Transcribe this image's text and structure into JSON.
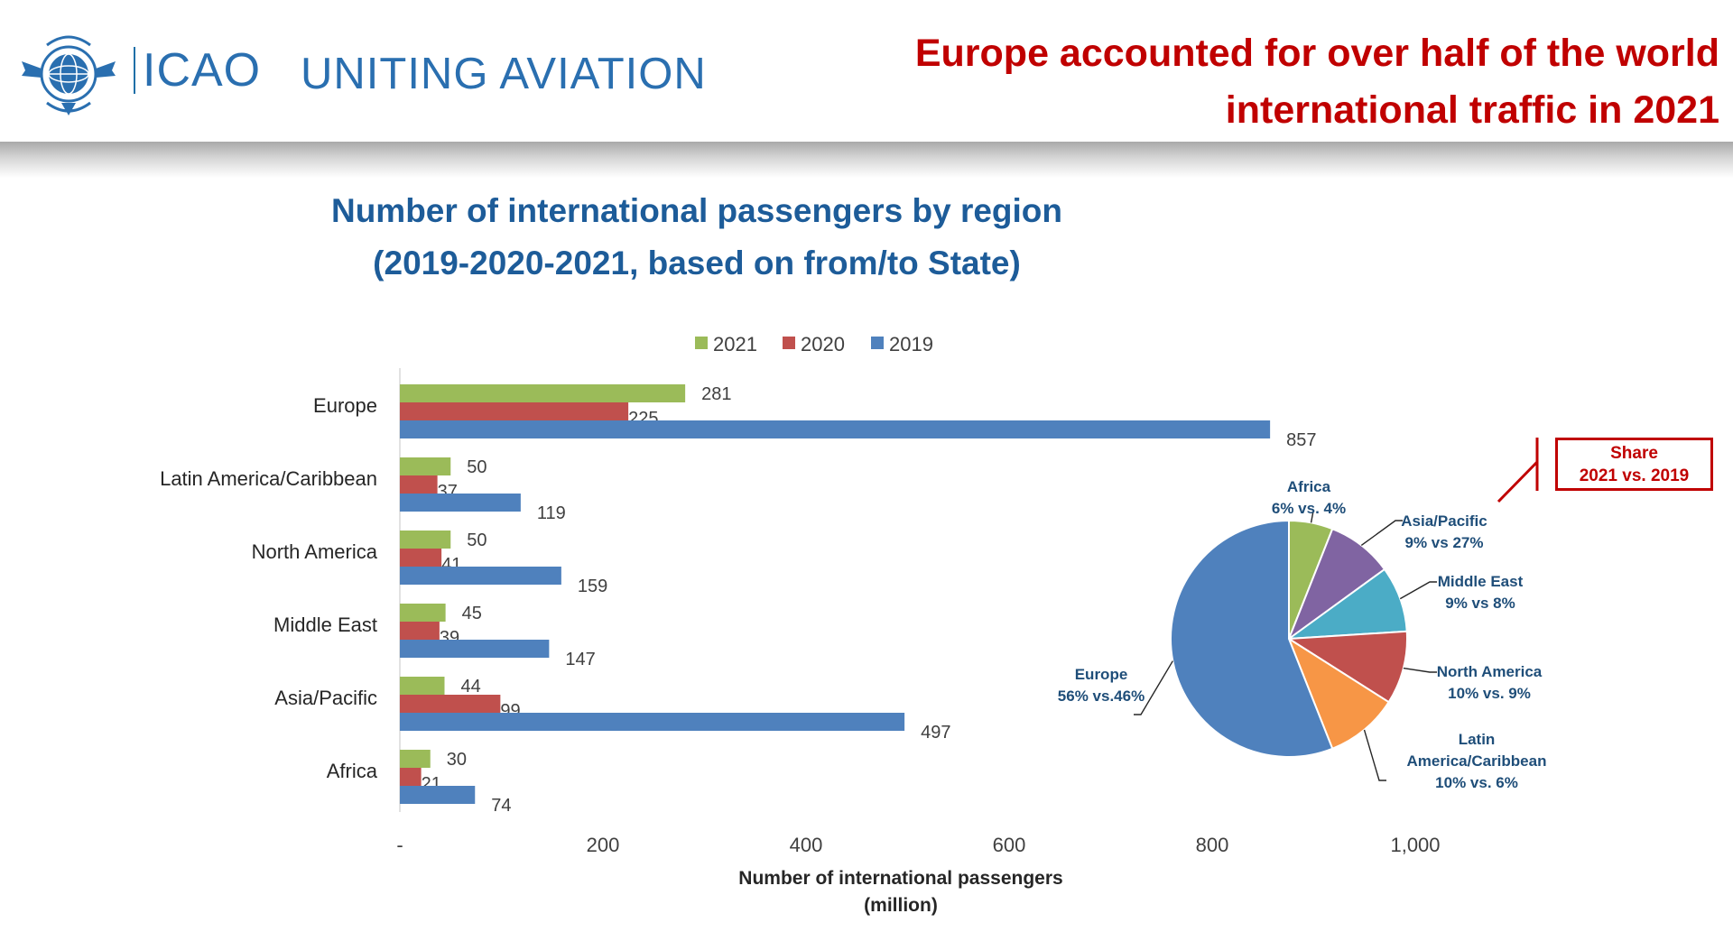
{
  "header": {
    "brand": "ICAO",
    "tagline": "UNITING AVIATION",
    "headline_line1": "Europe accounted for over half of the world",
    "headline_line2": "international traffic in 2021"
  },
  "colors": {
    "series_2021": "#9bbb59",
    "series_2020": "#c0504d",
    "series_2019": "#4f81bd",
    "headline": "#c00000",
    "title": "#1d5c99"
  },
  "chart_data": [
    {
      "type": "bar",
      "orientation": "horizontal",
      "title_line1": "Number of international passengers by region",
      "title_line2": "(2019-2020-2021, based on from/to State)",
      "categories": [
        "Europe",
        "Latin America/Caribbean",
        "North America",
        "Middle East",
        "Asia/Pacific",
        "Africa"
      ],
      "series": [
        {
          "name": "2021",
          "values": [
            281,
            50,
            50,
            45,
            44,
            30
          ]
        },
        {
          "name": "2020",
          "values": [
            225,
            37,
            41,
            39,
            99,
            21
          ]
        },
        {
          "name": "2019",
          "values": [
            857,
            119,
            159,
            147,
            497,
            74
          ]
        }
      ],
      "legend_order": [
        "2021",
        "2020",
        "2019"
      ],
      "legend_position": "top",
      "xlabel_line1": "Number of international  passengers",
      "xlabel_line2": "(million)",
      "xlim": [
        0,
        1000
      ],
      "xticks": [
        0,
        200,
        400,
        600,
        800,
        1000
      ],
      "xtick_labels": [
        "-",
        "200",
        "400",
        "600",
        "800",
        "1,000"
      ],
      "grid": false
    },
    {
      "type": "pie",
      "slices": [
        {
          "label_line1": "Africa",
          "label_line2": "6% vs. 4%",
          "value": 6,
          "color": "#9bbb59"
        },
        {
          "label_line1": "Asia/Pacific",
          "label_line2": "9% vs 27%",
          "value": 9,
          "color": "#8064a2"
        },
        {
          "label_line1": "Middle East",
          "label_line2": "9% vs 8%",
          "value": 9,
          "color": "#4bacc6"
        },
        {
          "label_line1": "North America",
          "label_line2": "10% vs. 9%",
          "value": 10,
          "color": "#c0504d"
        },
        {
          "label_line1": "Latin",
          "label_line2": "America/Caribbean",
          "label_line3": "10% vs. 6%",
          "value": 10,
          "color": "#f79646"
        },
        {
          "label_line1": "Europe",
          "label_line2": "56% vs.46%",
          "value": 56,
          "color": "#4f81bd"
        }
      ]
    }
  ],
  "share_box": {
    "line1": "Share",
    "line2": "2021 vs. 2019"
  }
}
